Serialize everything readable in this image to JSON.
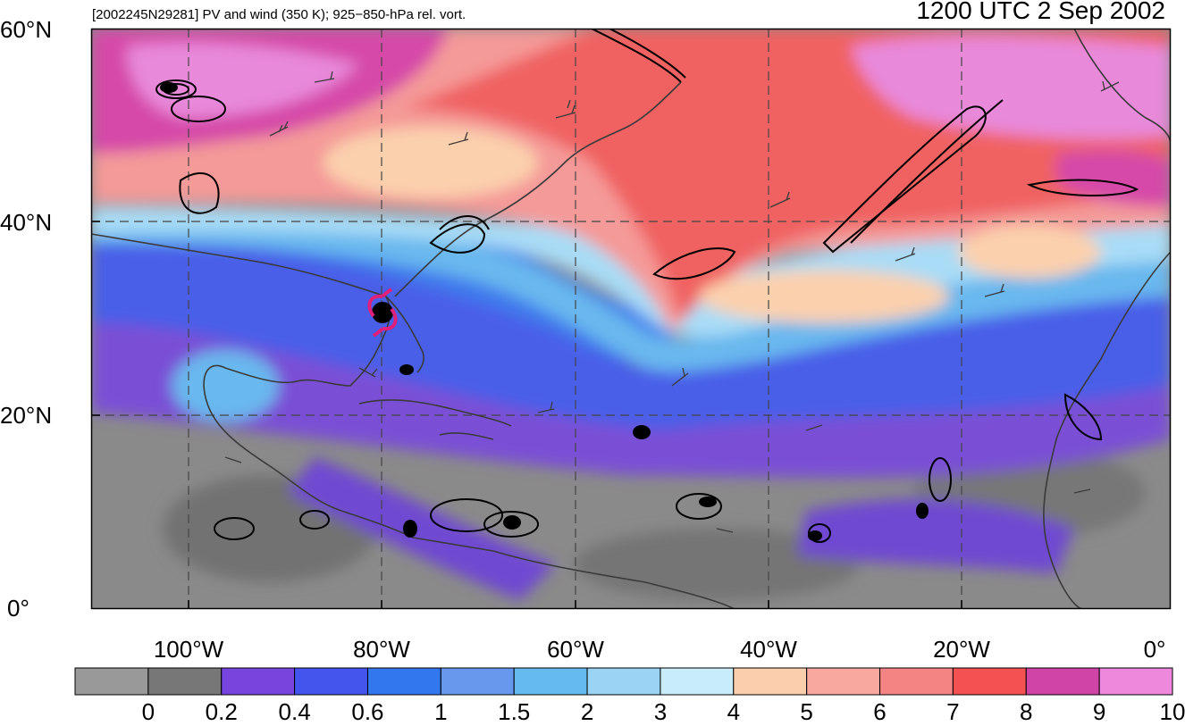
{
  "header": {
    "title": "[2002245N29281] PV and wind (350 K); 925−850-hPa rel. vort.",
    "timestamp": "1200 UTC 2 Sep 2002"
  },
  "axes": {
    "lat_labels": [
      "60°N",
      "40°N",
      "20°N",
      "0°"
    ],
    "lon_labels": [
      "100°W",
      "80°W",
      "60°W",
      "40°W",
      "20°W",
      "0°"
    ],
    "lat_range": [
      0,
      60
    ],
    "lon_range": [
      -110,
      0
    ]
  },
  "storm": {
    "name": "2002245N29281",
    "lat": 30.5,
    "lon": -80.0,
    "symbol": "tropical-cyclone"
  },
  "colorbar": {
    "levels": [
      "0",
      "0.2",
      "0.4",
      "0.6",
      "1",
      "1.5",
      "2",
      "3",
      "4",
      "5",
      "6",
      "7",
      "8",
      "9",
      "10"
    ],
    "colors": [
      "#999999",
      "#777777",
      "#7744dd",
      "#4455ee",
      "#3377ee",
      "#6699ee",
      "#66bbee",
      "#99d4f4",
      "#c8ecfa",
      "#fbcfad",
      "#f9a8a0",
      "#f48484",
      "#f45252",
      "#d044a8",
      "#ee88dd"
    ]
  }
}
